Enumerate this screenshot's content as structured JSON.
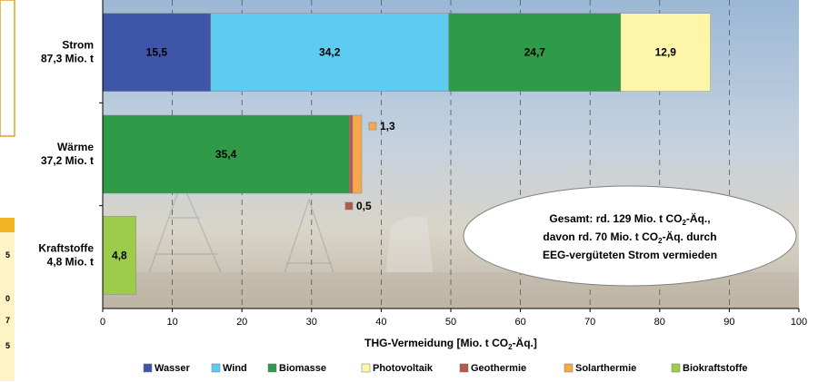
{
  "chart_data": {
    "type": "bar",
    "orientation": "horizontal",
    "stacked": true,
    "categories": [
      {
        "name": "Strom",
        "total": "87,3 Mio. t"
      },
      {
        "name": "Wärme",
        "total": "37,2 Mio. t"
      },
      {
        "name": "Kraftstoffe",
        "total": "4,8 Mio. t"
      }
    ],
    "series": [
      {
        "name": "Wasser",
        "color": "#3f56a8",
        "values": [
          15.5,
          0,
          0
        ],
        "labels": [
          "15,5",
          "",
          ""
        ]
      },
      {
        "name": "Wind",
        "color": "#5ecbf0",
        "values": [
          34.2,
          0,
          0
        ],
        "labels": [
          "34,2",
          "",
          ""
        ]
      },
      {
        "name": "Biomasse",
        "color": "#2f9a48",
        "values": [
          24.7,
          35.4,
          0
        ],
        "labels": [
          "24,7",
          "35,4",
          ""
        ]
      },
      {
        "name": "Photovoltaik",
        "color": "#fdf6a8",
        "values": [
          12.9,
          0,
          0
        ],
        "labels": [
          "12,9",
          "",
          ""
        ]
      },
      {
        "name": "Geothermie",
        "color": "#b25a4c",
        "values": [
          0,
          0.5,
          0
        ],
        "labels": [
          "",
          "0,5",
          ""
        ]
      },
      {
        "name": "Solarthermie",
        "color": "#f7a84a",
        "values": [
          0,
          1.3,
          0
        ],
        "labels": [
          "",
          "1,3",
          ""
        ]
      },
      {
        "name": "Biokraftstoffe",
        "color": "#9ccc4a",
        "values": [
          0,
          0,
          4.8
        ],
        "labels": [
          "",
          "",
          "4,8"
        ]
      }
    ],
    "xlim": [
      0,
      100
    ],
    "xticks": [
      0,
      10,
      20,
      30,
      40,
      50,
      60,
      70,
      80,
      90,
      100
    ],
    "xlabel": "THG-Vermeidung [Mio. t CO",
    "xlabel_sub": "2",
    "xlabel_end": "-Äq.]",
    "grid": "vertical-dashed",
    "legend_position": "bottom"
  },
  "callout": {
    "line1_a": "Gesamt: rd. 129 Mio. t CO",
    "line1_sub": "2",
    "line1_b": "-Äq.,",
    "line2_a": "davon rd. 70 Mio. t CO",
    "line2_sub": "2",
    "line2_b": "-Äq. durch",
    "line3": "EEG-vergüteten Strom vermieden"
  },
  "left_panel": {
    "values": [
      "5",
      "0",
      "7",
      "5"
    ]
  }
}
